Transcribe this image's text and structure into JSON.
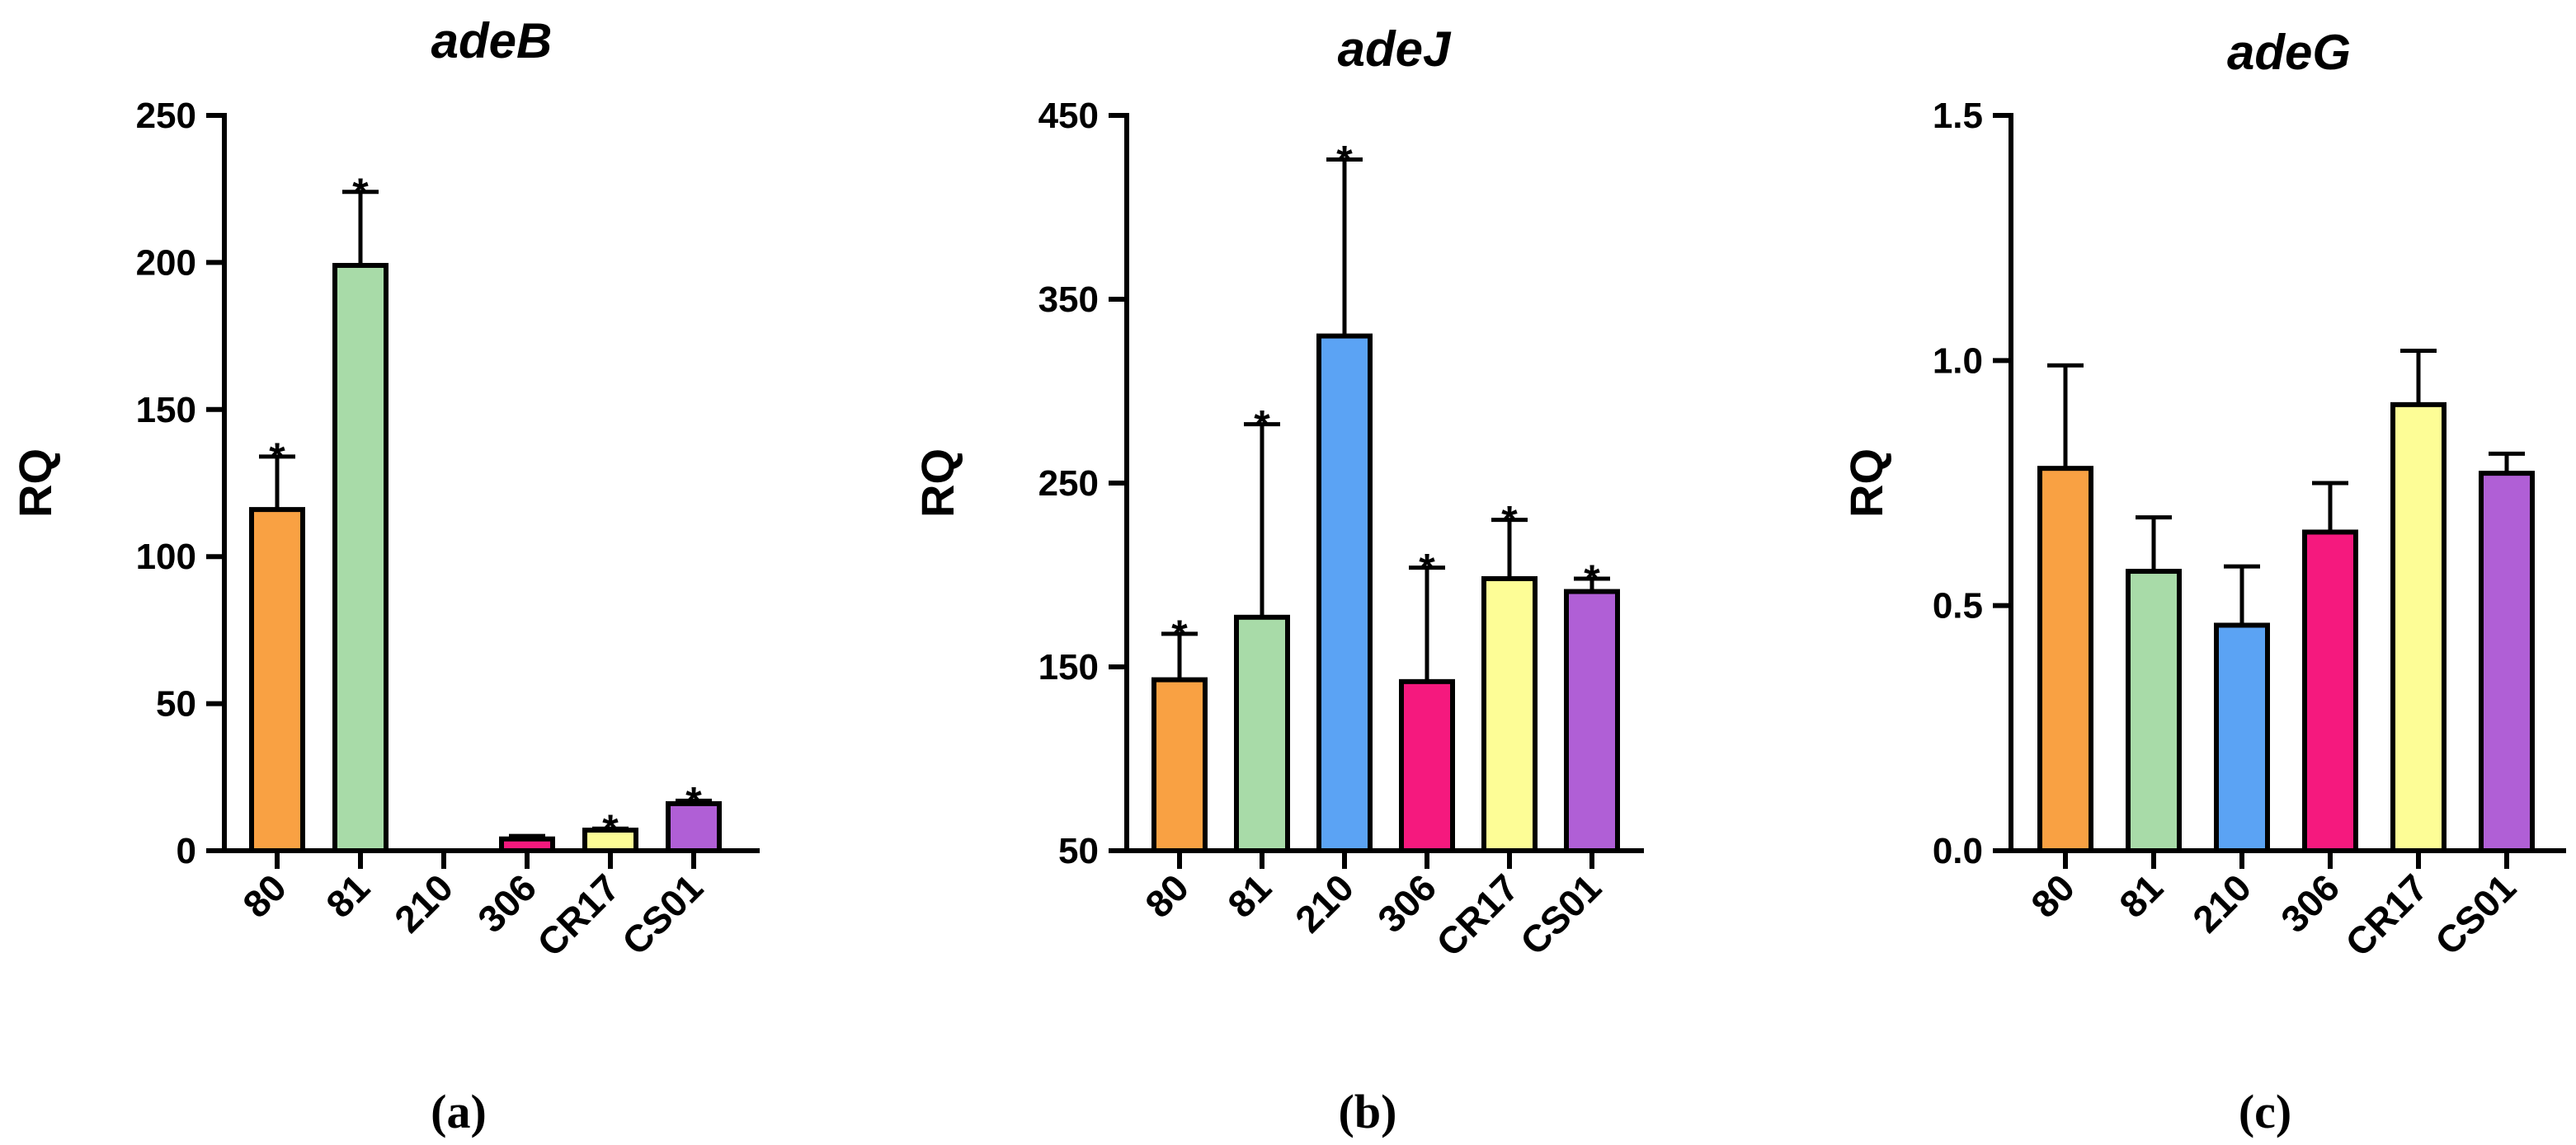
{
  "chart_data": [
    {
      "type": "bar",
      "panel": "(a)",
      "title": "adeB",
      "xlabel": "",
      "ylabel": "RQ",
      "ylim": [
        0,
        250
      ],
      "yticks": [
        0,
        50,
        100,
        150,
        200,
        250
      ],
      "categories": [
        "80",
        "81",
        "210",
        "306",
        "CR17",
        "CS01"
      ],
      "values": [
        116,
        199,
        0,
        4,
        7,
        16
      ],
      "errors": [
        18,
        25,
        0,
        1,
        0.5,
        1
      ],
      "significant": [
        true,
        true,
        false,
        false,
        true,
        true
      ],
      "colors": [
        "#f9a143",
        "#a8dba8",
        "#5ba3f4",
        "#f5197e",
        "#fdfd96",
        "#b05fd6"
      ]
    },
    {
      "type": "bar",
      "panel": "(b)",
      "title": "adeJ",
      "xlabel": "",
      "ylabel": "RQ",
      "ylim": [
        50,
        450
      ],
      "yticks": [
        50,
        150,
        250,
        350,
        450
      ],
      "categories": [
        "80",
        "81",
        "210",
        "306",
        "CR17",
        "CS01"
      ],
      "values": [
        143,
        177,
        330,
        142,
        198,
        191
      ],
      "errors": [
        25,
        105,
        96,
        62,
        32,
        7
      ],
      "significant": [
        true,
        true,
        true,
        true,
        true,
        true
      ],
      "colors": [
        "#f9a143",
        "#a8dba8",
        "#5ba3f4",
        "#f5197e",
        "#fdfd96",
        "#b05fd6"
      ]
    },
    {
      "type": "bar",
      "panel": "(c)",
      "title": "adeG",
      "xlabel": "",
      "ylabel": "RQ",
      "ylim": [
        0,
        1.5
      ],
      "yticks": [
        "0.0",
        "0.5",
        "1.0",
        "1.5"
      ],
      "categories": [
        "80",
        "81",
        "210",
        "306",
        "CR17",
        "CS01"
      ],
      "values": [
        0.78,
        0.57,
        0.46,
        0.65,
        0.91,
        0.77
      ],
      "errors": [
        0.21,
        0.11,
        0.12,
        0.1,
        0.11,
        0.04
      ],
      "significant": [
        false,
        false,
        false,
        false,
        false,
        false
      ],
      "colors": [
        "#f9a143",
        "#a8dba8",
        "#5ba3f4",
        "#f5197e",
        "#fdfd96",
        "#b05fd6"
      ]
    }
  ]
}
